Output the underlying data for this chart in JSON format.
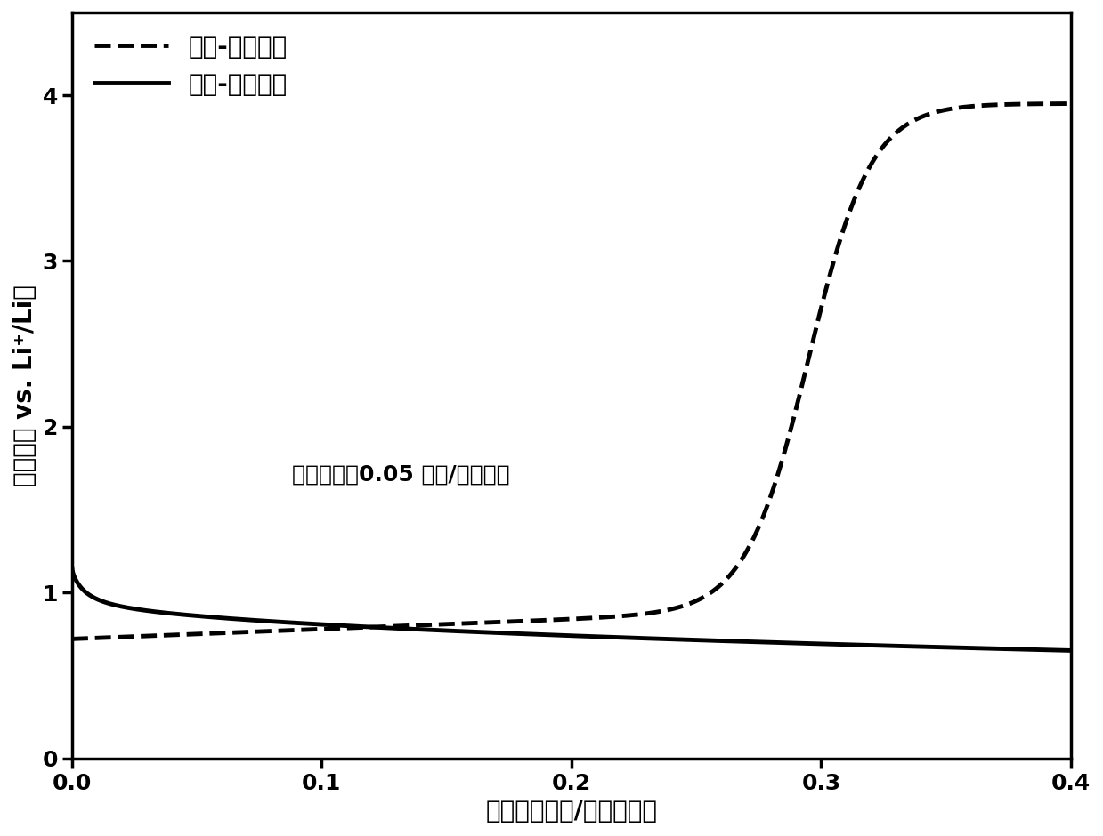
{
  "title": "",
  "xlabel": "容量（毫安时/平方厘米）",
  "ylabel": "电位（伏 vs. Li⁺/Li）",
  "xlim": [
    0.0,
    0.4
  ],
  "ylim": [
    0.0,
    4.5
  ],
  "yticks": [
    0,
    1,
    2,
    3,
    4
  ],
  "xticks": [
    0.0,
    0.1,
    0.2,
    0.3,
    0.4
  ],
  "legend1_label": "充电-氮气释放",
  "legend2_label": "放电-氮气固定",
  "annotation": "电流密度：0.05 毫安/平方厘米",
  "bg_color": "#ffffff",
  "line_color": "#000000",
  "fontsize_label": 20,
  "fontsize_tick": 18,
  "fontsize_legend": 20,
  "fontsize_annotation": 18
}
